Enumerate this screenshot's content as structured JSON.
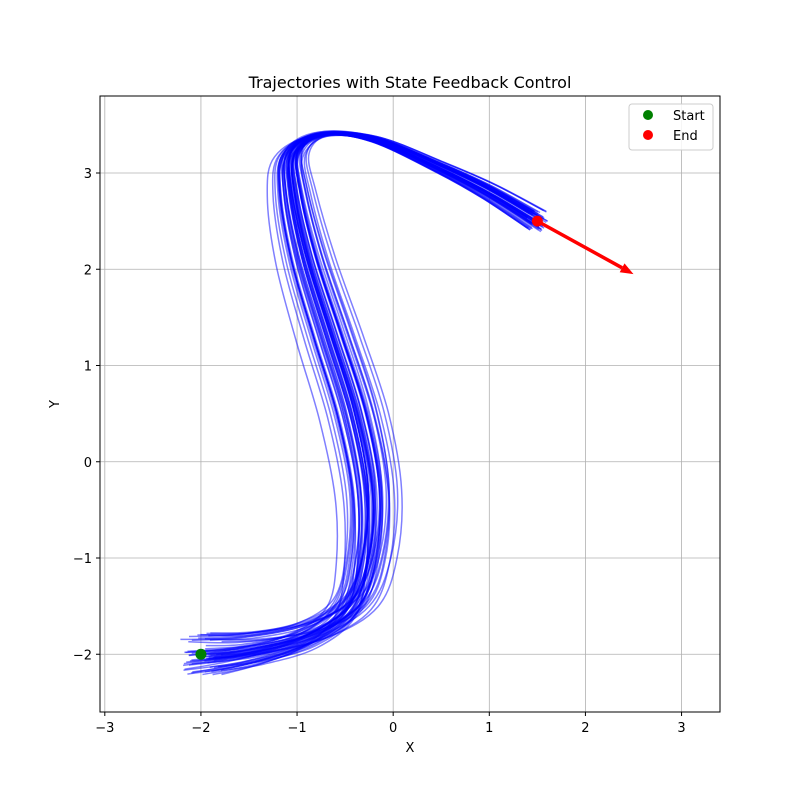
{
  "chart_data": {
    "type": "line",
    "title": "Trajectories with State Feedback Control",
    "xlabel": "X",
    "ylabel": "Y",
    "xlim": [
      -3.05,
      3.4
    ],
    "ylim": [
      -2.6,
      3.8
    ],
    "xticks": [
      -3,
      -2,
      -1,
      0,
      1,
      2,
      3
    ],
    "yticks": [
      -2,
      -1,
      0,
      1,
      2,
      3
    ],
    "xtick_labels": [
      "−3",
      "−2",
      "−1",
      "0",
      "1",
      "2",
      "3"
    ],
    "ytick_labels": [
      "−2",
      "−1",
      "0",
      "1",
      "2",
      "3"
    ],
    "grid": true,
    "legend_position": "top-right",
    "trajectory_color": "#0000ff",
    "trajectory_count": 60,
    "nominal_path": {
      "x": [
        -2.0,
        -1.5,
        -0.9,
        -0.45,
        -0.28,
        -0.25,
        -0.4,
        -0.65,
        -0.9,
        -1.05,
        -1.05,
        -0.75,
        -0.2,
        0.5,
        1.0,
        1.5
      ],
      "y": [
        -2.0,
        -1.95,
        -1.8,
        -1.5,
        -1.0,
        -0.3,
        0.5,
        1.3,
        2.1,
        2.8,
        3.2,
        3.4,
        3.35,
        3.05,
        2.8,
        2.5
      ]
    },
    "start": {
      "label": "Start",
      "x": -2.0,
      "y": -2.0,
      "color": "#008000"
    },
    "end": {
      "label": "End",
      "x": 1.5,
      "y": 2.5,
      "color": "#ff0000"
    },
    "end_arrow": {
      "x_from": 1.5,
      "y_from": 2.5,
      "x_to": 2.5,
      "y_to": 1.95,
      "color": "#ff0000"
    }
  }
}
